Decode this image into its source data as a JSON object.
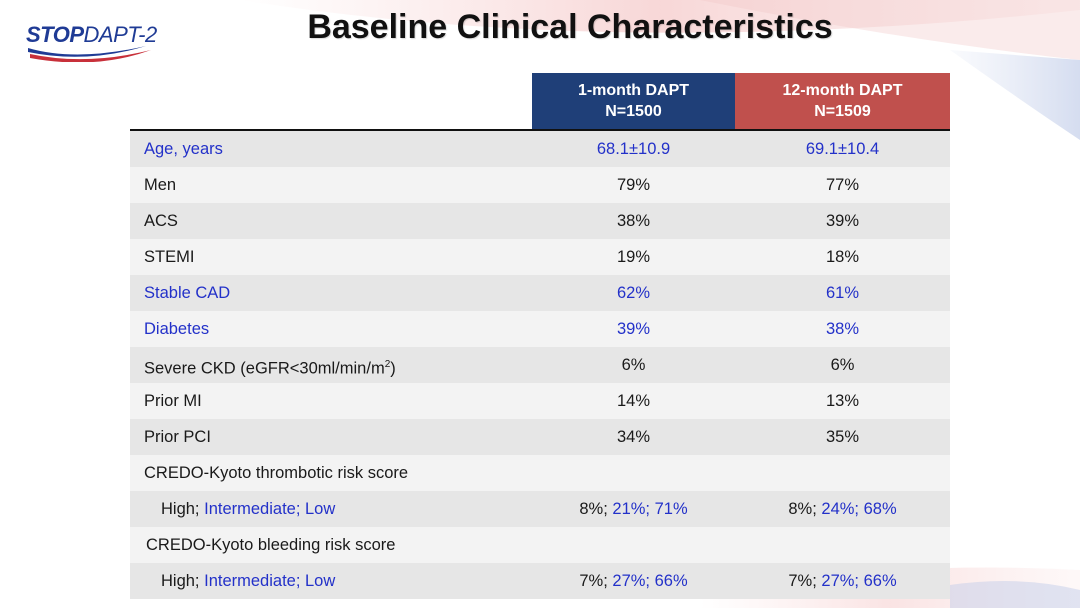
{
  "logo": {
    "part1": "STOP",
    "part2": "DAPT-2"
  },
  "title": "Baseline Clinical Characteristics",
  "colors": {
    "header1": "#1f3f78",
    "header2": "#c0504d",
    "highlight_text": "#2331c9"
  },
  "columns": [
    {
      "line1": "1-month DAPT",
      "line2": "N=1500"
    },
    {
      "line1": "12-month DAPT",
      "line2": "N=1509"
    }
  ],
  "rows": [
    {
      "label": "Age, years",
      "v1": "68.1±10.9",
      "v2": "69.1±10.4"
    },
    {
      "label": "Men",
      "v1": "79%",
      "v2": "77%"
    },
    {
      "label": "ACS",
      "v1": "38%",
      "v2": "39%"
    },
    {
      "label": "STEMI",
      "v1": "19%",
      "v2": "18%"
    },
    {
      "label": "Stable CAD",
      "v1": "62%",
      "v2": "61%"
    },
    {
      "label": "Diabetes",
      "v1": "39%",
      "v2": "38%"
    },
    {
      "label": "Severe CKD (eGFR<30ml/min/m",
      "label_sup": "2",
      "label_end": ")",
      "v1": "6%",
      "v2": "6%"
    },
    {
      "label": "Prior MI",
      "v1": "14%",
      "v2": "13%"
    },
    {
      "label": "Prior PCI",
      "v1": "34%",
      "v2": "35%"
    },
    {
      "label": "CREDO-Kyoto thrombotic risk score",
      "v1": "",
      "v2": ""
    },
    {
      "label_a": "High; ",
      "label_b": "Intermediate; Low",
      "v1_a": "8%; ",
      "v1_b": "21%; 71%",
      "v2_a": "8%; ",
      "v2_b": "24%; 68%"
    },
    {
      "label": "CREDO-Kyoto bleeding risk score",
      "v1": "",
      "v2": ""
    },
    {
      "label_a": "High; ",
      "label_b": "Intermediate; Low",
      "v1_a": "7%; ",
      "v1_b": "27%; 66%",
      "v2_a": "7%; ",
      "v2_b": "27%; 66%"
    }
  ]
}
